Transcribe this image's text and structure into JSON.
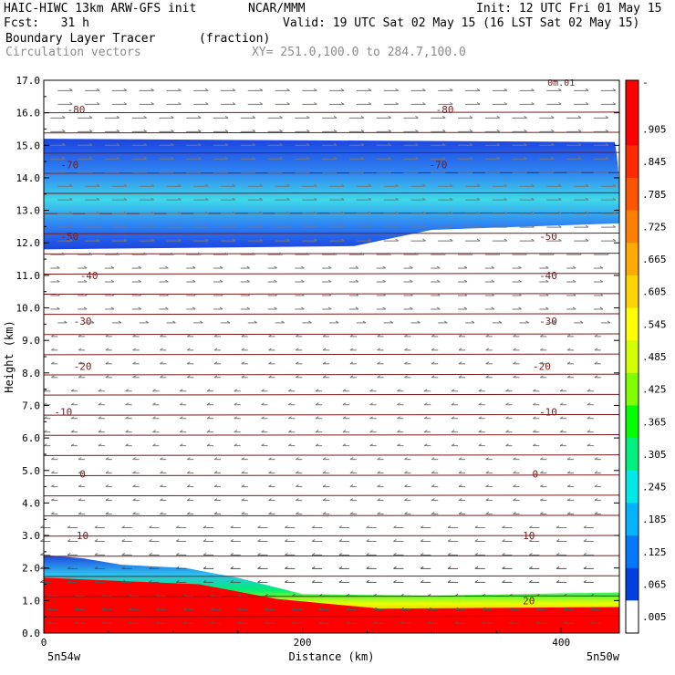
{
  "header": {
    "model": "HAIC-HIWC 13km ARW-GFS init",
    "org": "NCAR/MMM",
    "init": "Init: 12 UTC Fri 01 May 15",
    "fcst": "Fcst:   31 h",
    "valid": "Valid: 19 UTC Sat 02 May 15 (16 LST Sat 02 May 15)",
    "field": "Boundary Layer Tracer",
    "units": "(fraction)",
    "vectors": "Circulation vectors",
    "xy": "XY= 251.0,100.0 to 284.7,100.0"
  },
  "axes": {
    "ylabel": "Height (km)",
    "xlabel": "Distance (km)",
    "y_ticks": [
      "0.0",
      "1.0",
      "2.0",
      "3.0",
      "4.0",
      "5.0",
      "6.0",
      "7.0",
      "8.0",
      "9.0",
      "10.0",
      "11.0",
      "12.0",
      "13.0",
      "14.0",
      "15.0",
      "16.0",
      "17.0"
    ],
    "x_ticks": [
      "0",
      "200",
      "400"
    ],
    "x_left_label": "5n54w",
    "x_right_label": "5n50w",
    "y_range": [
      0,
      17
    ],
    "x_range": [
      0,
      445
    ]
  },
  "isotherms": {
    "color": "#7a1a1a",
    "labels": [
      {
        "text": "-80",
        "h": 16.1,
        "x": [
          25,
          310
        ]
      },
      {
        "text": "-70",
        "h": 14.4,
        "x": [
          20,
          305
        ]
      },
      {
        "text": "-50",
        "h": 12.2,
        "x": [
          20,
          390
        ]
      },
      {
        "text": "-40",
        "h": 11.0,
        "x": [
          35,
          390
        ]
      },
      {
        "text": "-30",
        "h": 9.6,
        "x": [
          30,
          390
        ]
      },
      {
        "text": "-20",
        "h": 8.2,
        "x": [
          30,
          385
        ]
      },
      {
        "text": "-10",
        "h": 6.8,
        "x": [
          15,
          390
        ]
      },
      {
        "text": "0",
        "h": 4.9,
        "x": [
          30,
          380
        ]
      },
      {
        "text": "10",
        "h": 3.0,
        "x": [
          30,
          375
        ]
      },
      {
        "text": "20",
        "h": 1.0,
        "x": [
          375
        ]
      }
    ],
    "top_label": "0m.01"
  },
  "colorbar": {
    "labels": [
      "-",
      ".905",
      ".845",
      ".785",
      ".725",
      ".665",
      ".605",
      ".545",
      ".485",
      ".425",
      ".365",
      ".305",
      ".245",
      ".185",
      ".125",
      ".065",
      ".005"
    ],
    "colors": [
      "#ff0000",
      "#ff0000",
      "#ff2a00",
      "#ff5500",
      "#ff8000",
      "#ffaa00",
      "#ffd400",
      "#ffff00",
      "#d4ff00",
      "#80ff00",
      "#00ff00",
      "#00f080",
      "#00e8e8",
      "#00b4ff",
      "#0078ff",
      "#0040e0",
      "#ffffff"
    ]
  }
}
